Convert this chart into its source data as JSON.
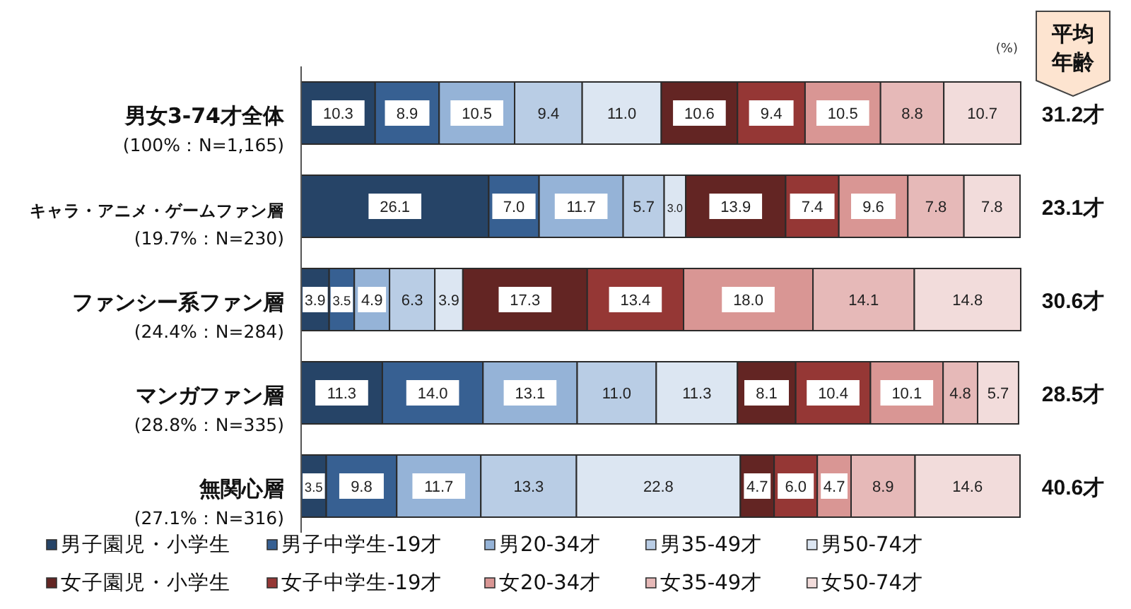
{
  "chart_data": {
    "type": "bar",
    "orientation": "horizontal",
    "stacked": true,
    "categories": [
      "男女3-74才全体\n(100%：N=1,165)",
      "キャラ・アニメ・ゲームファン層\n(19.7%：N=230)",
      "ファンシー系ファン層\n(24.4%：N=284)",
      "マンガファン層\n(28.8%：N=335)",
      "無関心層\n(27.1%：N=316)"
    ],
    "series": [
      {
        "name": "男子園児・小学生",
        "color": "#264467",
        "values": [
          10.3,
          26.1,
          3.9,
          11.3,
          3.5
        ],
        "value_labels": [
          "10.3",
          "26.1",
          "3.9",
          "11.3",
          "3.5"
        ]
      },
      {
        "name": "男子中学生-19才",
        "color": "#376092",
        "values": [
          8.9,
          7.0,
          3.5,
          14.0,
          9.8
        ],
        "value_labels": [
          "8.9",
          "7.0",
          "3.5",
          "14.0",
          "9.8"
        ]
      },
      {
        "name": "男20-34才",
        "color": "#95b3d7",
        "values": [
          10.5,
          11.7,
          4.9,
          13.1,
          11.7
        ],
        "value_labels": [
          "10.5",
          "11.7",
          "4.9",
          "13.1",
          "11.7"
        ]
      },
      {
        "name": "男35-49才",
        "color": "#b9cde5",
        "values": [
          9.4,
          5.7,
          6.3,
          11.0,
          13.3
        ],
        "value_labels": [
          "9.4",
          "5.7",
          "6.3",
          "11.0",
          "13.3"
        ]
      },
      {
        "name": "男50-74才",
        "color": "#dce6f2",
        "values": [
          11.0,
          3.0,
          3.9,
          11.3,
          22.8
        ],
        "value_labels": [
          "11.0",
          "3.0",
          "3.9",
          "11.3",
          "22.8"
        ]
      },
      {
        "name": "女子園児・小学生",
        "color": "#632523",
        "values": [
          10.6,
          13.9,
          17.3,
          8.1,
          4.7
        ],
        "value_labels": [
          "10.6",
          "13.9",
          "17.3",
          "8.1",
          "4.7"
        ]
      },
      {
        "name": "女子中学生-19才",
        "color": "#953735",
        "values": [
          9.4,
          7.4,
          13.4,
          10.4,
          6.0
        ],
        "value_labels": [
          "9.4",
          "7.4",
          "13.4",
          "10.4",
          "6.0"
        ]
      },
      {
        "name": "女20-34才",
        "color": "#d99694",
        "values": [
          10.5,
          9.6,
          18.0,
          10.1,
          4.7
        ],
        "value_labels": [
          "10.5",
          "9.6",
          "18.0",
          "10.1",
          "4.7"
        ]
      },
      {
        "name": "女35-49才",
        "color": "#e6b9b8",
        "values": [
          8.8,
          7.8,
          14.1,
          4.8,
          8.9
        ],
        "value_labels": [
          "8.8",
          "7.8",
          "14.1",
          "4.8",
          "8.9"
        ]
      },
      {
        "name": "女50-74才",
        "color": "#f2dcdb",
        "values": [
          10.7,
          7.8,
          14.8,
          5.7,
          14.6
        ],
        "value_labels": [
          "10.7",
          "7.8",
          "14.8",
          "5.7",
          "14.6"
        ]
      }
    ],
    "xlim": [
      0,
      100.1
    ],
    "xlabel": "(%)",
    "y2label": "平均年齢",
    "tick_labels": "y",
    "legend": "bottom",
    "annotations": [
      "31.2才",
      "23.1才",
      "30.6才",
      "28.5才",
      "40.6才"
    ]
  }
}
